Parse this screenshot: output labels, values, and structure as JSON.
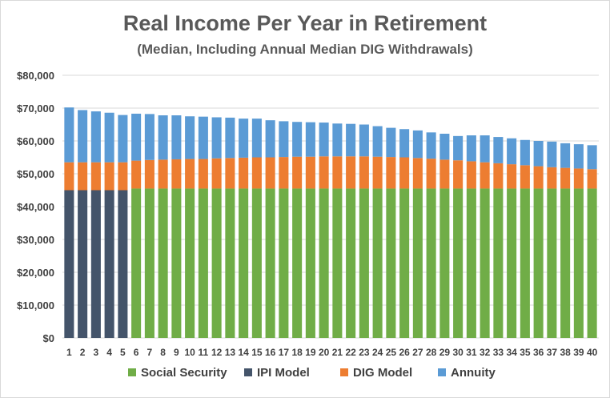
{
  "chart_data": {
    "type": "bar",
    "stacked": true,
    "title": "Real Income Per Year in Retirement",
    "subtitle": "(Median, Including Annual Median DIG Withdrawals)",
    "categories": [
      "1",
      "2",
      "3",
      "4",
      "5",
      "6",
      "7",
      "8",
      "9",
      "10",
      "11",
      "12",
      "13",
      "14",
      "15",
      "16",
      "17",
      "18",
      "19",
      "20",
      "21",
      "22",
      "23",
      "24",
      "25",
      "26",
      "27",
      "28",
      "29",
      "30",
      "31",
      "32",
      "33",
      "34",
      "35",
      "36",
      "37",
      "38",
      "39",
      "40"
    ],
    "ylim": [
      0,
      80000
    ],
    "yticks": [
      0,
      10000,
      20000,
      30000,
      40000,
      50000,
      60000,
      70000,
      80000
    ],
    "ytick_labels": [
      "$0",
      "$10,000",
      "$20,000",
      "$30,000",
      "$40,000",
      "$50,000",
      "$60,000",
      "$70,000",
      "$80,000"
    ],
    "grid": true,
    "legend_position": "bottom",
    "series": [
      {
        "name": "Social Security",
        "color": "#70AD47",
        "values": [
          0,
          0,
          0,
          0,
          0,
          45500,
          45500,
          45500,
          45500,
          45500,
          45500,
          45500,
          45500,
          45500,
          45500,
          45500,
          45500,
          45500,
          45500,
          45500,
          45500,
          45500,
          45500,
          45500,
          45500,
          45500,
          45500,
          45500,
          45500,
          45500,
          45500,
          45500,
          45500,
          45500,
          45500,
          45500,
          45500,
          45500,
          45500,
          45500
        ]
      },
      {
        "name": "IPI Model",
        "color": "#44546A",
        "values": [
          45000,
          45000,
          45000,
          45000,
          45000,
          0,
          0,
          0,
          0,
          0,
          0,
          0,
          0,
          0,
          0,
          0,
          0,
          0,
          0,
          0,
          0,
          0,
          0,
          0,
          0,
          0,
          0,
          0,
          0,
          0,
          0,
          0,
          0,
          0,
          0,
          0,
          0,
          0,
          0,
          0
        ]
      },
      {
        "name": "DIG Model",
        "color": "#ED7D31",
        "values": [
          8500,
          8500,
          8500,
          8500,
          8500,
          8500,
          8700,
          8800,
          8900,
          9000,
          9000,
          9200,
          9300,
          9400,
          9500,
          9500,
          9600,
          9700,
          9700,
          9800,
          9800,
          9800,
          9800,
          9700,
          9600,
          9500,
          9300,
          9100,
          8800,
          8600,
          8300,
          8000,
          7700,
          7400,
          7100,
          6800,
          6500,
          6300,
          6100,
          5900
        ]
      },
      {
        "name": "Annuity",
        "color": "#5B9BD5",
        "values": [
          16700,
          15900,
          15500,
          15100,
          14400,
          14300,
          14000,
          13500,
          13400,
          13000,
          12900,
          12500,
          12300,
          11900,
          11800,
          11300,
          10900,
          10600,
          10500,
          10300,
          10000,
          9900,
          9700,
          9300,
          8900,
          8600,
          8400,
          8000,
          7900,
          7400,
          7900,
          8200,
          8000,
          7900,
          7700,
          7700,
          7800,
          7500,
          7400,
          7300
        ]
      }
    ]
  }
}
